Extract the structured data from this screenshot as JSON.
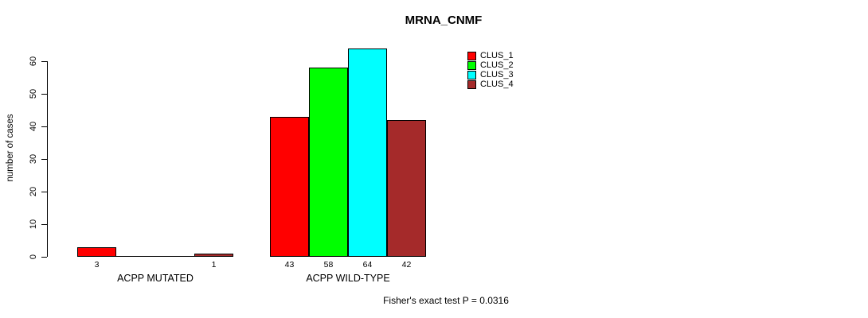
{
  "chart_data": {
    "type": "bar",
    "title": "MRNA_CNMF",
    "ylabel": "number of cases",
    "xlabel": "",
    "ylim": [
      0,
      60
    ],
    "yticks": [
      0,
      10,
      20,
      30,
      40,
      50,
      60
    ],
    "grid": false,
    "legend_position": "top-right",
    "series": [
      {
        "name": "CLUS_1",
        "color": "#ff0000"
      },
      {
        "name": "CLUS_2",
        "color": "#00ff00"
      },
      {
        "name": "CLUS_3",
        "color": "#00ffff"
      },
      {
        "name": "CLUS_4",
        "color": "#a52a2a"
      }
    ],
    "groups": [
      {
        "label": "ACPP MUTATED",
        "values": [
          3,
          0,
          0,
          1
        ],
        "bar_labels": [
          "3",
          "",
          "",
          "1"
        ]
      },
      {
        "label": "ACPP WILD-TYPE",
        "values": [
          43,
          58,
          64,
          42
        ],
        "bar_labels": [
          "43",
          "58",
          "64",
          "42"
        ]
      }
    ],
    "annotation": "Fisher's exact test P = 0.0316"
  }
}
